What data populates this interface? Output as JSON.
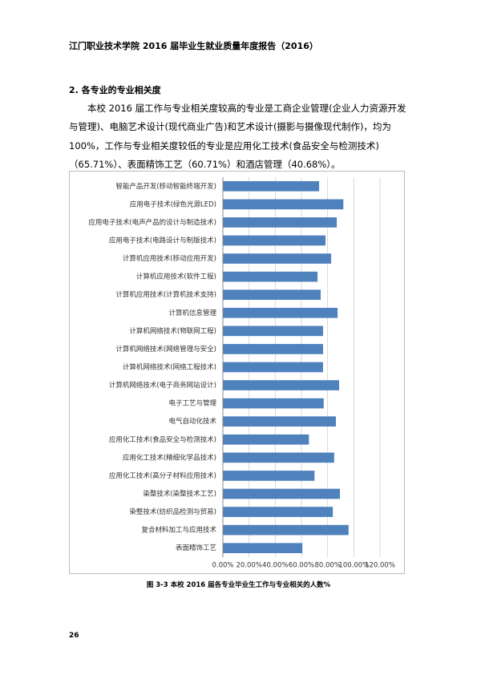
{
  "header": {
    "title": "江门职业技术学院 2016 届毕业生就业质量年度报告（2016）"
  },
  "section": {
    "heading": "2.   各专业的专业相关度",
    "paragraph": "本校 2016 届工作与专业相关度较高的专业是工商企业管理(企业人力资源开发与管理)、电脑艺术设计(现代商业广告)和艺术设计(摄影与摄像现代制作)，均为 100%，工作与专业相关度较低的专业是应用化工技术(食品安全与检测技术)（65.71%）、表面精饰工艺（60.71%）和酒店管理（40.68%）。"
  },
  "chart_data": {
    "type": "hbar",
    "categories": [
      "智能产品开发(移动智能终端开发)",
      "应用电子技术(绿色光源LED)",
      "应用电子技术(电声产品的设计与制造技术)",
      "应用电子技术(电路设计与制版技术)",
      "计算机应用技术(移动应用开发)",
      "计算机应用技术(软件工程)",
      "计算机应用技术(计算机技术支持)",
      "计算机信息管理",
      "计算机网络技术(物联网工程)",
      "计算机网络技术(网络管理与安全)",
      "计算机网络技术(网络工程技术)",
      "计算机网络技术(电子商务网站设计)",
      "电子工艺与管理",
      "电气自动化技术",
      "应用化工技术(食品安全与检测技术)",
      "应用化工技术(精细化学品技术)",
      "应用化工技术(高分子材料应用技术)",
      "染整技术(染整技术工艺)",
      "染整技术(纺织品检测与贸易)",
      "复合材料加工与应用技术",
      "表面精饰工艺"
    ],
    "values": [
      73.5,
      92,
      87,
      78.4,
      82.7,
      72.3,
      74.7,
      87.6,
      76.5,
      76.5,
      76.5,
      88.8,
      77,
      86.3,
      65.71,
      85,
      70,
      89.4,
      84,
      96,
      60.71
    ],
    "color": "#4f81bd",
    "xlim": [
      0,
      120
    ],
    "xticks": [
      {
        "value": 0,
        "label": "0.00%"
      },
      {
        "value": 20,
        "label": "20.00%"
      },
      {
        "value": 40,
        "label": "40.00%"
      },
      {
        "value": 60,
        "label": "60.00%"
      },
      {
        "value": 80,
        "label": "80.00%"
      },
      {
        "value": 100,
        "label": "100.00%"
      },
      {
        "value": 120,
        "label": "120.00%"
      }
    ],
    "grid": true
  },
  "caption": "图 3-3   本校 2016 届各专业毕业生工作与专业相关的人数%",
  "page_number": "26"
}
